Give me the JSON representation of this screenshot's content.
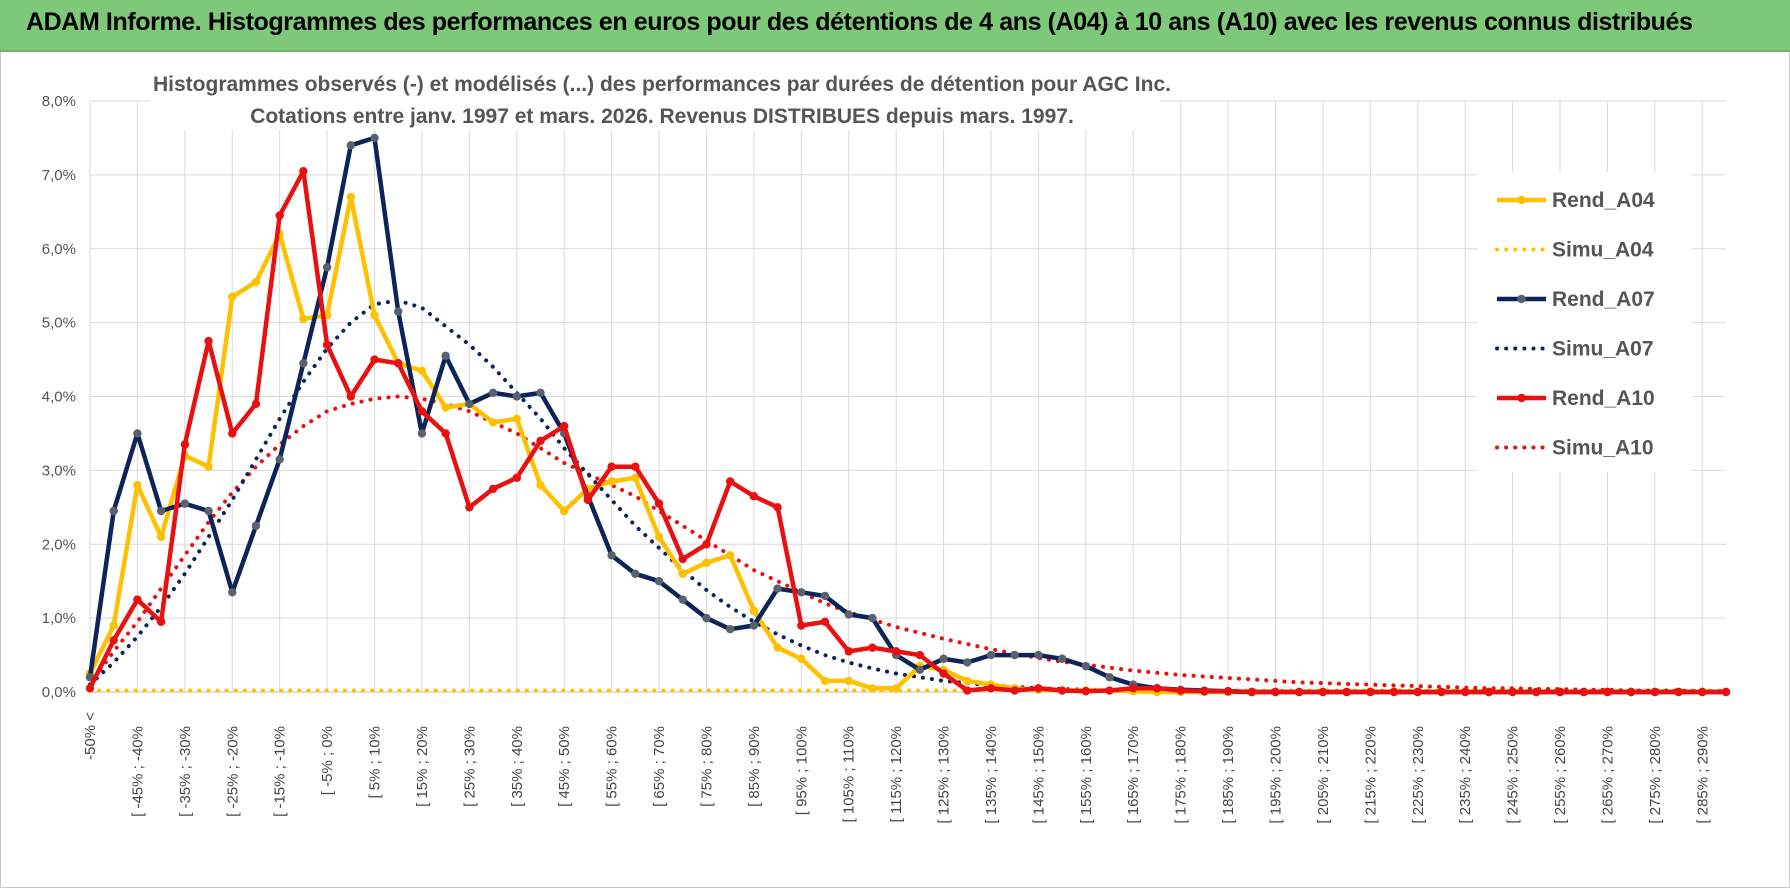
{
  "banner": {
    "title": "ADAM Informe. Histogrammes des performances en euros pour des détentions de 4 ans (A04) à 10 ans (A10) avec les revenus connus distribués",
    "color": "#7ec87a"
  },
  "chart_data": {
    "type": "line",
    "title_line1": "Histogrammes observés (-) et modélisés (...) des performances par durées de détention pour AGC Inc.",
    "title_line2": "Cotations entre janv. 1997 et mars. 2026.  Revenus DISTRIBUES depuis mars. 1997.",
    "xlabel": "",
    "ylabel": "",
    "ylim": [
      0,
      8
    ],
    "y_ticks": [
      "0,0%",
      "1,0%",
      "2,0%",
      "3,0%",
      "4,0%",
      "5,0%",
      "6,0%",
      "7,0%",
      "8,0%"
    ],
    "grid": true,
    "legend_position": "right",
    "x_tick_labels": [
      "-50% <",
      "[ -45% ; -40%",
      "[ -35% ; -30%",
      "[ -25% ; -20%",
      "[ -15% ; -10%",
      "[ -5% ; 0%",
      "[ 5% ; 10%",
      "[ 15% ; 20%",
      "[ 25% ; 30%",
      "[ 35% ; 40%",
      "[ 45% ; 50%",
      "[ 55% ; 60%",
      "[ 65% ; 70%",
      "[ 75% ; 80%",
      "[ 85% ; 90%",
      "[ 95% ; 100%",
      "[ 105% ; 110%",
      "[ 115% ; 120%",
      "[ 125% ; 130%",
      "[ 135% ; 140%",
      "[ 145% ; 150%",
      "[ 155% ; 160%",
      "[ 165% ; 170%",
      "[ 175% ; 180%",
      "[ 185% ; 190%",
      "[ 195% ; 200%",
      "[ 205% ; 210%",
      "[ 215% ; 220%",
      "[ 225% ; 230%",
      "[ 235% ; 240%",
      "[ 245% ; 250%",
      "[ 255% ; 260%",
      "[ 265% ; 270%",
      "[ 275% ; 280%",
      "[ 285% ; 290%"
    ],
    "n_bins": 70,
    "series": [
      {
        "name": "Rend_A04",
        "color": "#ffc000",
        "style": "solid",
        "values": [
          0.25,
          0.9,
          2.8,
          2.1,
          3.2,
          3.05,
          5.35,
          5.55,
          6.2,
          5.05,
          5.1,
          6.7,
          5.1,
          4.45,
          4.35,
          3.85,
          3.9,
          3.65,
          3.7,
          2.8,
          2.45,
          2.75,
          2.85,
          2.9,
          2.1,
          1.6,
          1.75,
          1.85,
          1.1,
          0.6,
          0.45,
          0.15,
          0.15,
          0.05,
          0.05,
          0.35,
          0.3,
          0.15,
          0.1,
          0.05,
          0.03,
          0.02,
          0.02,
          0.02,
          0.01,
          0,
          0,
          0,
          0,
          0,
          0,
          0,
          0,
          0,
          0,
          0,
          0,
          0,
          0,
          0,
          0,
          0,
          0,
          0,
          0,
          0,
          0,
          0,
          0,
          0
        ]
      },
      {
        "name": "Simu_A04",
        "color": "#ffc000",
        "style": "dotted",
        "values": [
          0.02,
          0.02,
          0.02,
          0.02,
          0.02,
          0.02,
          0.02,
          0.02,
          0.02,
          0.02,
          0.02,
          0.02,
          0.02,
          0.02,
          0.02,
          0.02,
          0.02,
          0.02,
          0.02,
          0.02,
          0.02,
          0.02,
          0.02,
          0.02,
          0.02,
          0.02,
          0.02,
          0.02,
          0.02,
          0.02,
          0.02,
          0.02,
          0.02,
          0.02,
          0.02,
          0.02,
          0.02,
          0.02,
          0.02,
          0.02,
          0.02,
          0.02,
          0.02,
          0.02,
          0.02,
          0.02,
          0.02,
          0.02,
          0.02,
          0.02,
          0.02,
          0.02,
          0.02,
          0.02,
          0.02,
          0.02,
          0.02,
          0.02,
          0.02,
          0.02,
          0.02,
          0.02,
          0.02,
          0.02,
          0.02,
          0.02,
          0.02,
          0.02,
          0.02,
          0.02
        ]
      },
      {
        "name": "Rend_A07",
        "color": "#0c2458",
        "style": "solid",
        "values": [
          0.2,
          2.45,
          3.5,
          2.45,
          2.55,
          2.45,
          1.35,
          2.25,
          3.15,
          4.45,
          5.75,
          7.4,
          7.5,
          5.15,
          3.5,
          4.55,
          3.9,
          4.05,
          4.0,
          4.05,
          3.5,
          2.65,
          1.85,
          1.6,
          1.5,
          1.25,
          1.0,
          0.85,
          0.9,
          1.4,
          1.35,
          1.3,
          1.05,
          1.0,
          0.5,
          0.3,
          0.45,
          0.4,
          0.5,
          0.5,
          0.5,
          0.45,
          0.35,
          0.2,
          0.1,
          0.05,
          0.03,
          0.02,
          0.01,
          0,
          0,
          0,
          0,
          0,
          0,
          0,
          0,
          0,
          0,
          0,
          0,
          0,
          0,
          0,
          0,
          0,
          0,
          0,
          0,
          0
        ]
      },
      {
        "name": "Simu_A07",
        "color": "#0c2458",
        "style": "dotted",
        "values": [
          0.1,
          0.4,
          0.75,
          1.15,
          1.6,
          2.1,
          2.6,
          3.15,
          3.7,
          4.2,
          4.65,
          5.0,
          5.25,
          5.3,
          5.2,
          4.95,
          4.7,
          4.4,
          4.05,
          3.7,
          3.3,
          2.95,
          2.6,
          2.25,
          1.95,
          1.65,
          1.38,
          1.15,
          0.95,
          0.78,
          0.63,
          0.5,
          0.4,
          0.32,
          0.25,
          0.2,
          0.15,
          0.12,
          0.09,
          0.07,
          0.05,
          0.04,
          0.03,
          0.02,
          0.02,
          0.01,
          0.01,
          0.01,
          0,
          0,
          0,
          0,
          0,
          0,
          0,
          0,
          0,
          0,
          0,
          0,
          0,
          0,
          0,
          0,
          0,
          0,
          0,
          0,
          0,
          0
        ]
      },
      {
        "name": "Rend_A10",
        "color": "#e81010",
        "style": "solid",
        "values": [
          0.05,
          0.7,
          1.25,
          0.95,
          3.35,
          4.75,
          3.5,
          3.9,
          6.45,
          7.05,
          4.7,
          4.0,
          4.5,
          4.45,
          3.8,
          3.5,
          2.5,
          2.75,
          2.9,
          3.4,
          3.6,
          2.6,
          3.05,
          3.05,
          2.55,
          1.8,
          2.0,
          2.85,
          2.65,
          2.5,
          0.9,
          0.95,
          0.55,
          0.6,
          0.55,
          0.5,
          0.25,
          0.02,
          0.05,
          0.02,
          0.05,
          0.02,
          0.01,
          0.02,
          0.05,
          0.05,
          0.02,
          0.01,
          0.01,
          0,
          0,
          0,
          0,
          0,
          0,
          0,
          0,
          0,
          0,
          0,
          0,
          0,
          0,
          0,
          0,
          0,
          0,
          0,
          0,
          0
        ]
      },
      {
        "name": "Simu_A10",
        "color": "#e81010",
        "style": "dotted",
        "values": [
          0.1,
          0.55,
          0.95,
          1.4,
          1.85,
          2.3,
          2.7,
          3.05,
          3.35,
          3.6,
          3.8,
          3.9,
          3.97,
          4.0,
          3.97,
          3.9,
          3.8,
          3.65,
          3.5,
          3.3,
          3.1,
          2.95,
          2.8,
          2.65,
          2.45,
          2.25,
          2.05,
          1.85,
          1.65,
          1.5,
          1.35,
          1.2,
          1.08,
          0.98,
          0.88,
          0.8,
          0.72,
          0.65,
          0.58,
          0.52,
          0.46,
          0.41,
          0.37,
          0.33,
          0.29,
          0.26,
          0.23,
          0.21,
          0.19,
          0.17,
          0.15,
          0.13,
          0.12,
          0.11,
          0.1,
          0.09,
          0.08,
          0.07,
          0.06,
          0.05,
          0.05,
          0.04,
          0.04,
          0.03,
          0.03,
          0.02,
          0.02,
          0.02,
          0.01,
          0.01
        ]
      }
    ]
  }
}
